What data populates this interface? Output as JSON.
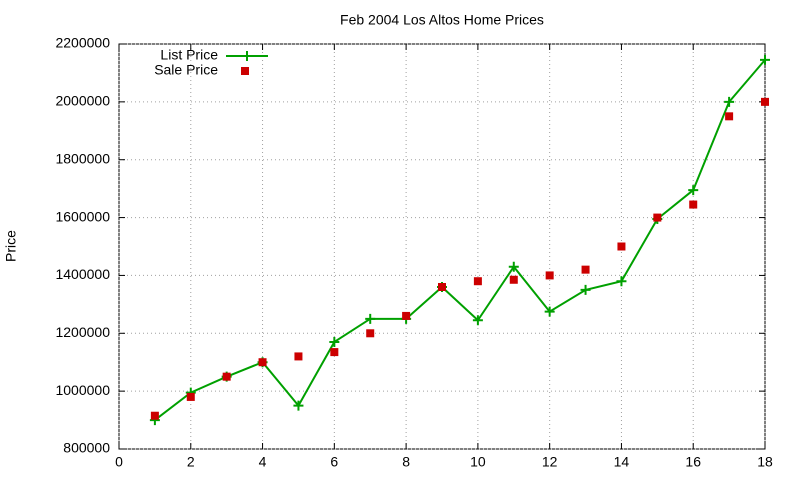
{
  "chart_data": {
    "type": "line",
    "title": "Feb 2004 Los Altos Home Prices",
    "y_label": "Price",
    "x": [
      1,
      2,
      3,
      4,
      5,
      6,
      7,
      8,
      9,
      10,
      11,
      12,
      13,
      14,
      15,
      16,
      17,
      18
    ],
    "series": [
      {
        "name": "List Price",
        "color": "#00a000",
        "mode": "linespoints",
        "values": [
          900000,
          995000,
          1050000,
          1100000,
          950000,
          1170000,
          1250000,
          1250000,
          1360000,
          1245000,
          1430000,
          1275000,
          1350000,
          1380000,
          1595000,
          1695000,
          2000000,
          2145000
        ]
      },
      {
        "name": "Sale Price",
        "color": "#cc0000",
        "mode": "points",
        "values": [
          915000,
          980000,
          1050000,
          1100000,
          1120000,
          1135000,
          1200000,
          1260000,
          1360000,
          1380000,
          1385000,
          1400000,
          1420000,
          1500000,
          1600000,
          1645000,
          1950000,
          2000000
        ]
      }
    ],
    "xlim": [
      0,
      18
    ],
    "xticks": [
      0,
      2,
      4,
      6,
      8,
      10,
      12,
      14,
      16,
      18
    ],
    "ylim": [
      800000,
      2200000
    ],
    "yticks": [
      800000,
      1000000,
      1200000,
      1400000,
      1600000,
      1800000,
      2000000,
      2200000
    ],
    "grid": true,
    "legend_position": "top-left"
  }
}
